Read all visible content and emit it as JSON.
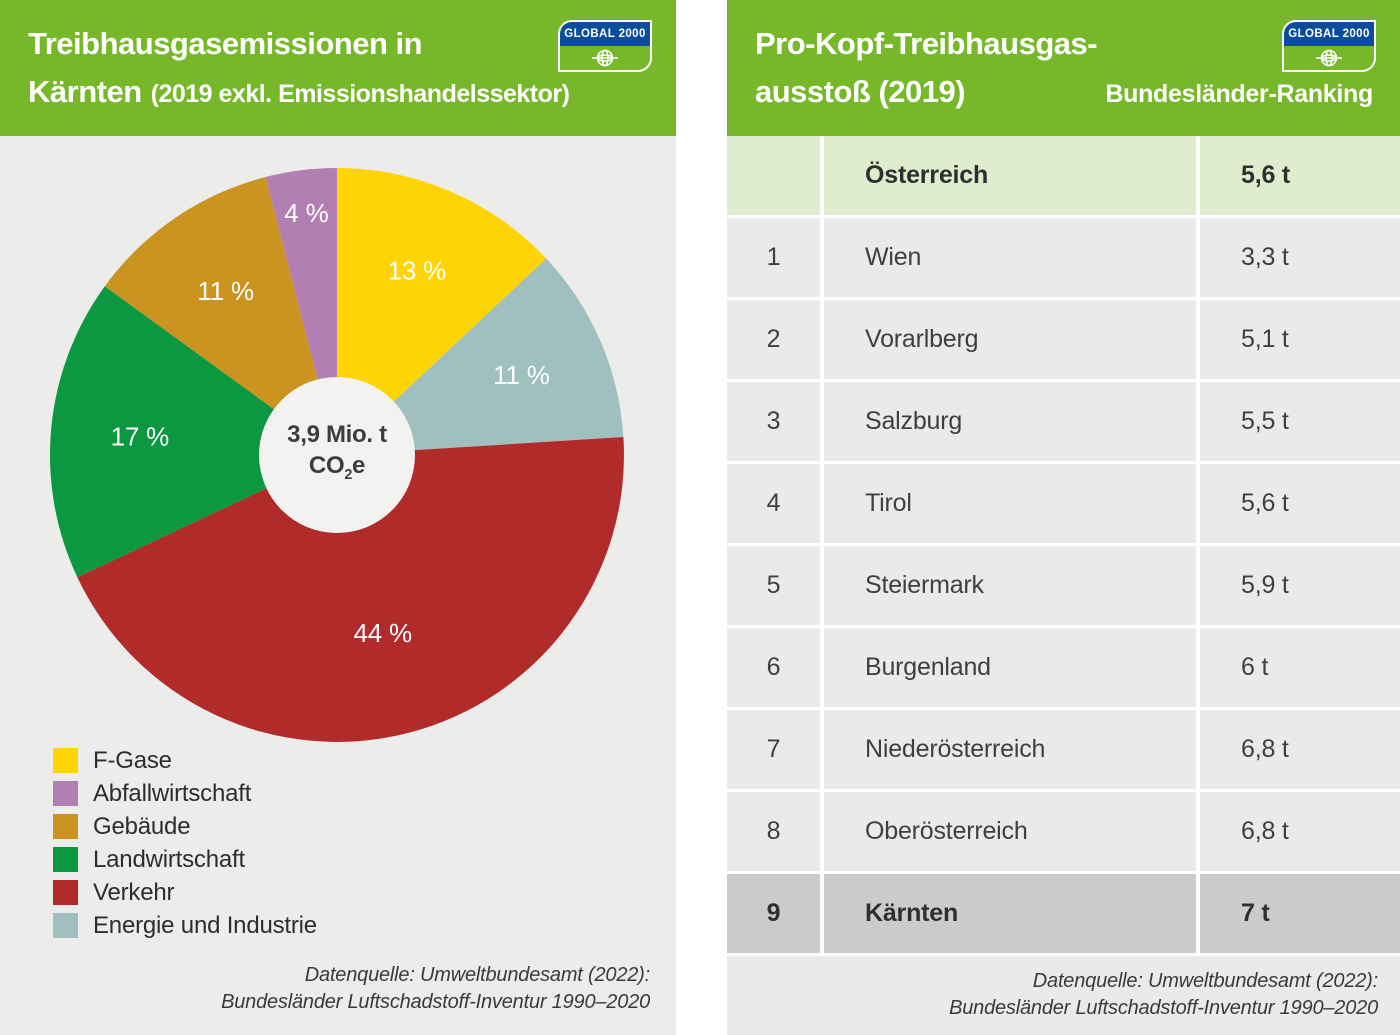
{
  "brand": {
    "logo_text": "GLOBAL 2000",
    "banner_green": "#76B82A",
    "navy_blue": "#0A4E9B"
  },
  "left_panel": {
    "title_line1": "Treibhausgasemissionen in",
    "title_line2": "Kärnten",
    "title_line2_suffix": "(2019 exkl. Emissionshandelssektor)",
    "center_value": "3,9 Mio. t",
    "center_formula": {
      "pre": "CO",
      "sub": "2",
      "post": "e"
    },
    "legend": [
      {
        "label": "F-Gase",
        "color": "#FFD404"
      },
      {
        "label": "Abfallwirtschaft",
        "color": "#B17FB1"
      },
      {
        "label": "Gebäude",
        "color": "#CB9420"
      },
      {
        "label": "Landwirtschaft",
        "color": "#0C9840"
      },
      {
        "label": "Verkehr",
        "color": "#B12B2B"
      },
      {
        "label": "Energie und Industrie",
        "color": "#9FC0BE"
      }
    ],
    "source_line1": "Datenquelle: Umweltbundesamt (2022):",
    "source_line2": "Bundesländer Luftschadstoff-Inventur 1990–2020"
  },
  "right_panel": {
    "title_line1": "Pro-Kopf-Treibhausgas-",
    "title_line2": "ausstoß (2019)",
    "title_badge": "Bundesländer-Ranking",
    "source_line1": "Datenquelle: Umweltbundesamt (2022):",
    "source_line2": "Bundesländer Luftschadstoff-Inventur 1990–2020"
  },
  "chart_data": [
    {
      "type": "pie",
      "title": "Treibhausgasemissionen in Kärnten (2019 exkl. Emissionshandelssektor)",
      "center_label": "3,9 Mio. t CO2e",
      "units": "percent",
      "draw_order": "clockwise from 12 o'clock",
      "hole_radius_ratio": 0.272,
      "hole_color": "#F2F2F0",
      "slices": [
        {
          "name": "F-Gase",
          "value_percent": 13,
          "label": "13 %",
          "color": "#FFD404",
          "label_r": 0.7
        },
        {
          "name": "Energie und Industrie",
          "value_percent": 11,
          "label": "11 %",
          "color": "#9FC0BE",
          "label_r": 0.7
        },
        {
          "name": "Verkehr",
          "value_percent": 44,
          "label": "44 %",
          "color": "#B12B2B",
          "label_r": 0.64
        },
        {
          "name": "Landwirtschaft",
          "value_percent": 17,
          "label": "17 %",
          "color": "#0C9840",
          "label_r": 0.69
        },
        {
          "name": "Gebäude",
          "value_percent": 11,
          "label": "11 %",
          "color": "#CB9420",
          "label_r": 0.69
        },
        {
          "name": "Abfallwirtschaft",
          "value_percent": 4,
          "label": "4 %",
          "color": "#B17FB1",
          "label_r": 0.85
        }
      ]
    },
    {
      "type": "table",
      "title": "Pro-Kopf-Treibhausgasausstoß (2019) — Bundesländer-Ranking",
      "unit": "t CO2e pro Kopf",
      "rows": [
        {
          "rank": "",
          "name": "Österreich",
          "value": "5,6 t",
          "style": "summary"
        },
        {
          "rank": "1",
          "name": "Wien",
          "value": "3,3 t",
          "style": "normal"
        },
        {
          "rank": "2",
          "name": "Vorarlberg",
          "value": "5,1 t",
          "style": "normal"
        },
        {
          "rank": "3",
          "name": "Salzburg",
          "value": "5,5 t",
          "style": "normal"
        },
        {
          "rank": "4",
          "name": "Tirol",
          "value": "5,6 t",
          "style": "normal"
        },
        {
          "rank": "5",
          "name": "Steiermark",
          "value": "5,9 t",
          "style": "normal"
        },
        {
          "rank": "6",
          "name": "Burgenland",
          "value": "6 t",
          "style": "normal"
        },
        {
          "rank": "7",
          "name": "Niederösterreich",
          "value": "6,8 t",
          "style": "normal"
        },
        {
          "rank": "8",
          "name": "Oberösterreich",
          "value": "6,8 t",
          "style": "normal"
        },
        {
          "rank": "9",
          "name": "Kärnten",
          "value": "7 t",
          "style": "highlight"
        }
      ]
    }
  ]
}
